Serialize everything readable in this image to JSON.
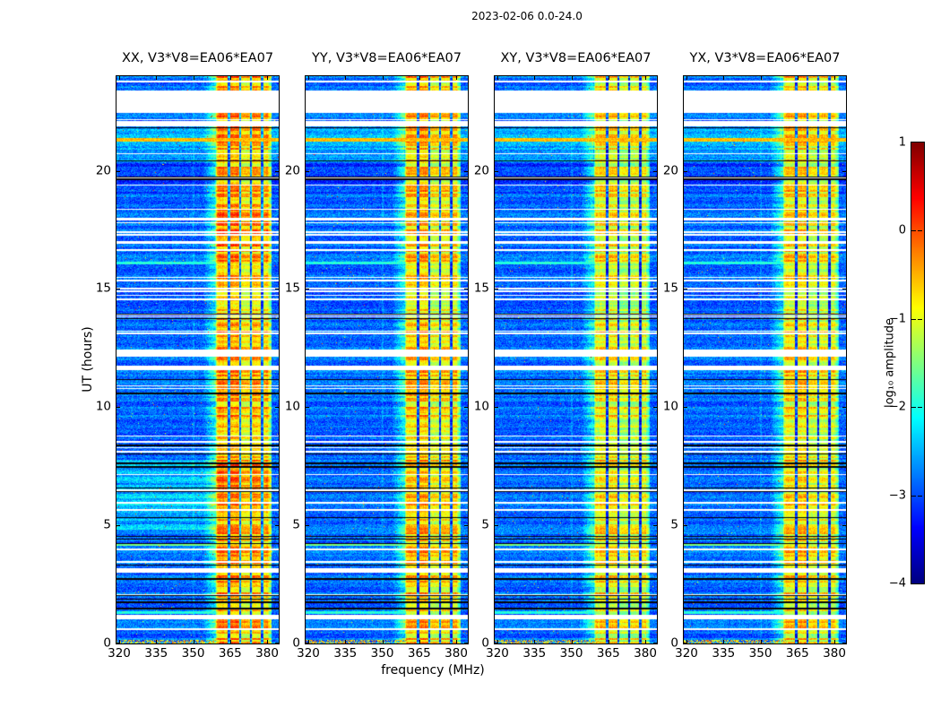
{
  "chart_data": {
    "type": "heatmap",
    "title": "2023-02-06 0.0-24.0",
    "xlabel": "frequency (MHz)",
    "ylabel": "UT (hours)",
    "x_range": [
      318.9,
      384.7
    ],
    "y_range": [
      0,
      24
    ],
    "x_tick_labels": [
      "320",
      "335",
      "350",
      "365",
      "380"
    ],
    "x_tick_values": [
      320,
      335,
      350,
      365,
      380
    ],
    "y_tick_labels": [
      "0",
      "5",
      "10",
      "15",
      "20"
    ],
    "y_tick_values": [
      0,
      5,
      10,
      15,
      20
    ],
    "grid": false,
    "panels": [
      {
        "id": "xx",
        "title": "XX, V3*V8=EA06*EA07",
        "band_gain": 0.3,
        "glow": true,
        "band_boosts": [
          [
            6.3,
            7.6,
            0.3
          ],
          [
            16.8,
            18.6,
            0.22
          ]
        ]
      },
      {
        "id": "yy",
        "title": "YY, V3*V8=EA06*EA07",
        "band_gain": 0.12,
        "glow": false
      },
      {
        "id": "xy",
        "title": "XY, V3*V8=EA06*EA07",
        "band_gain": -0.12,
        "glow": false
      },
      {
        "id": "yx",
        "title": "YX, V3*V8=EA06*EA07",
        "band_gain": -0.03,
        "glow": false
      }
    ],
    "colorbar": {
      "label": "log₁₀ amplitude",
      "tick_labels": [
        "1",
        "0",
        "−1",
        "−2",
        "−3",
        "−4"
      ],
      "tick_values": [
        1,
        0,
        -1,
        -2,
        -3,
        -4
      ],
      "vmin": -4,
      "vmax": 1,
      "colormap": "jet"
    },
    "model": {
      "seed": 20230206,
      "dt_hours": 0.08,
      "base_level": -3.42,
      "base_row_spread": 0.42,
      "base_pixel_spread": 0.72,
      "speckle_prob": 0.003,
      "band": {
        "f_start": 359.0,
        "f_end": 381.8,
        "base": -1.18,
        "sub_bands": [
          [
            359.3,
            364.05,
            0.42
          ],
          [
            365.1,
            368.6,
            0.5
          ],
          [
            369.7,
            372.95,
            0.18
          ],
          [
            374.0,
            377.4,
            0.32
          ],
          [
            378.2,
            380.4,
            0.3
          ]
        ],
        "dark_lines": [
          364.5,
          369.15,
          373.45,
          377.9
        ],
        "dark_line_halfwidth": 0.45,
        "dark_level": -3.0,
        "fade_start": 380.6,
        "row_spread": 1.15,
        "pixel_spread": 0.5,
        "col_spread": 0.28,
        "max": 0.35
      },
      "shoulder": {
        "f_start": 354.0,
        "gain": 0.55,
        "row_gain": 0.8
      },
      "vertical_line": {
        "f": 350.2,
        "halfwidth": 0.28,
        "boost": 0.2
      },
      "white_gaps": [
        [
          23.74,
          23.82
        ],
        [
          22.43,
          23.38
        ],
        [
          21.86,
          22.09
        ],
        [
          12.15,
          12.45
        ],
        [
          11.55,
          11.75
        ],
        [
          8.25,
          8.31
        ],
        [
          8.37,
          8.43
        ],
        [
          3.0,
          3.2
        ],
        [
          1.02,
          1.22
        ],
        [
          0.56,
          0.66
        ]
      ],
      "thin_gaps": {
        "count_upper": 24,
        "upper_range": [
          12.5,
          22.4
        ],
        "count_lower": 14,
        "lower_range": [
          0.3,
          11.4
        ],
        "width": 0.055
      },
      "black_lines": [
        21.8,
        20.4,
        19.72,
        19.62,
        13.9,
        13.72,
        11.15,
        10.55,
        8.35,
        8.0,
        7.6,
        7.45,
        6.55,
        6.4,
        5.3,
        4.5,
        4.38,
        4.2,
        3.3,
        2.7,
        2.0,
        1.85,
        1.72,
        1.45
      ],
      "black_width": 0.05,
      "bright_rows": [
        {
          "t": 21.3,
          "level": -0.55
        },
        {
          "t": 16.1,
          "level": -1.95,
          "f_max": 359.2
        },
        {
          "t": 4.2,
          "level": -1.55,
          "f_max": 359.2
        },
        {
          "t": 1.3,
          "level": -1.95,
          "f_max": 359.2
        },
        {
          "t": 0.08,
          "level": -0.9,
          "f_max": 361.0,
          "speckle": true
        }
      ],
      "tint_bands": [
        {
          "t_range": [
            20.35,
            21.78
          ],
          "boost": 0.3
        },
        {
          "t_range": [
            19.0,
            20.3
          ],
          "boost": -0.22
        }
      ],
      "glow": {
        "t_range": [
          4.8,
          7.75
        ],
        "f_max": 359.0,
        "boost": 0.38
      }
    }
  }
}
